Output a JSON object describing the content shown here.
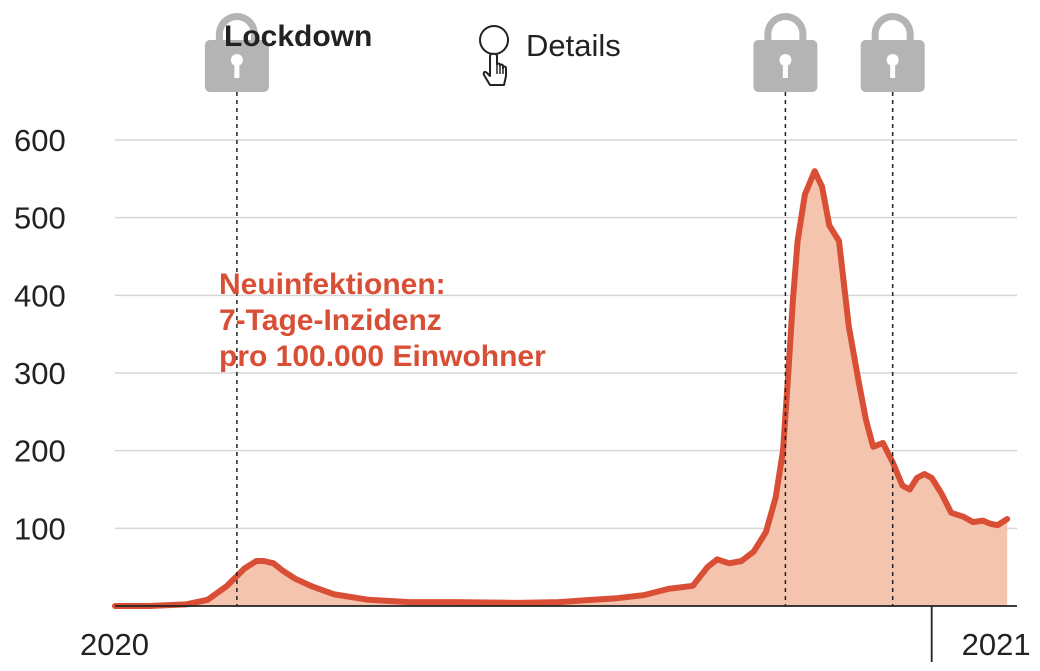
{
  "legend": {
    "lockdown_label": "Lockdown",
    "details_label": "Details",
    "lock_icon": "padlock-icon",
    "details_icon": "hand-pointer-icon"
  },
  "colors": {
    "line": "#d94f36",
    "fill": "#f5c4ae",
    "annotation": "#d94f36",
    "lock": "#b4b4b4"
  },
  "chart_data": {
    "type": "area",
    "title": "",
    "annotation": [
      "Neuinfektionen:",
      "7-Tage-Inzidenz",
      "pro 100.000 Einwohner"
    ],
    "xlabel": "",
    "ylabel": "",
    "ylim": [
      0,
      600
    ],
    "yticks": [
      100,
      200,
      300,
      400,
      500,
      600
    ],
    "ytick_labels": [
      "100",
      "200",
      "300",
      "400",
      "500",
      "600"
    ],
    "grid": true,
    "xlim": [
      "2020-02-01",
      "2021-02-05"
    ],
    "xticks": [
      {
        "date": "2020-02-01",
        "label": "2020"
      },
      {
        "date": "2021-01-01",
        "label": "2021"
      }
    ],
    "lockdowns": [
      "2020-03-22",
      "2020-11-02",
      "2020-12-16"
    ],
    "series": [
      {
        "x": [
          "2020-02-01",
          "2020-02-15",
          "2020-03-01",
          "2020-03-10",
          "2020-03-18",
          "2020-03-25",
          "2020-03-30",
          "2020-04-02",
          "2020-04-06",
          "2020-04-10",
          "2020-04-15",
          "2020-04-22",
          "2020-05-01",
          "2020-05-15",
          "2020-06-01",
          "2020-06-20",
          "2020-07-15",
          "2020-08-01",
          "2020-08-15",
          "2020-08-25",
          "2020-09-05",
          "2020-09-15",
          "2020-09-25",
          "2020-10-01",
          "2020-10-05",
          "2020-10-10",
          "2020-10-15",
          "2020-10-20",
          "2020-10-25",
          "2020-10-29",
          "2020-11-01",
          "2020-11-03",
          "2020-11-05",
          "2020-11-07",
          "2020-11-10",
          "2020-11-14",
          "2020-11-17",
          "2020-11-20",
          "2020-11-24",
          "2020-11-28",
          "2020-12-02",
          "2020-12-05",
          "2020-12-08",
          "2020-12-12",
          "2020-12-16",
          "2020-12-20",
          "2020-12-23",
          "2020-12-26",
          "2020-12-29",
          "2021-01-01",
          "2021-01-05",
          "2021-01-09",
          "2021-01-14",
          "2021-01-18",
          "2021-01-22",
          "2021-01-25",
          "2021-01-28",
          "2021-02-01"
        ],
        "values": [
          0,
          0,
          2,
          8,
          26,
          48,
          58,
          58,
          55,
          45,
          35,
          25,
          15,
          8,
          5,
          5,
          4,
          5,
          8,
          10,
          14,
          22,
          26,
          50,
          60,
          55,
          58,
          70,
          95,
          140,
          200,
          290,
          390,
          470,
          530,
          560,
          540,
          490,
          470,
          360,
          290,
          240,
          205,
          210,
          185,
          155,
          150,
          165,
          170,
          165,
          145,
          120,
          115,
          108,
          110,
          106,
          104,
          112
        ]
      }
    ]
  }
}
